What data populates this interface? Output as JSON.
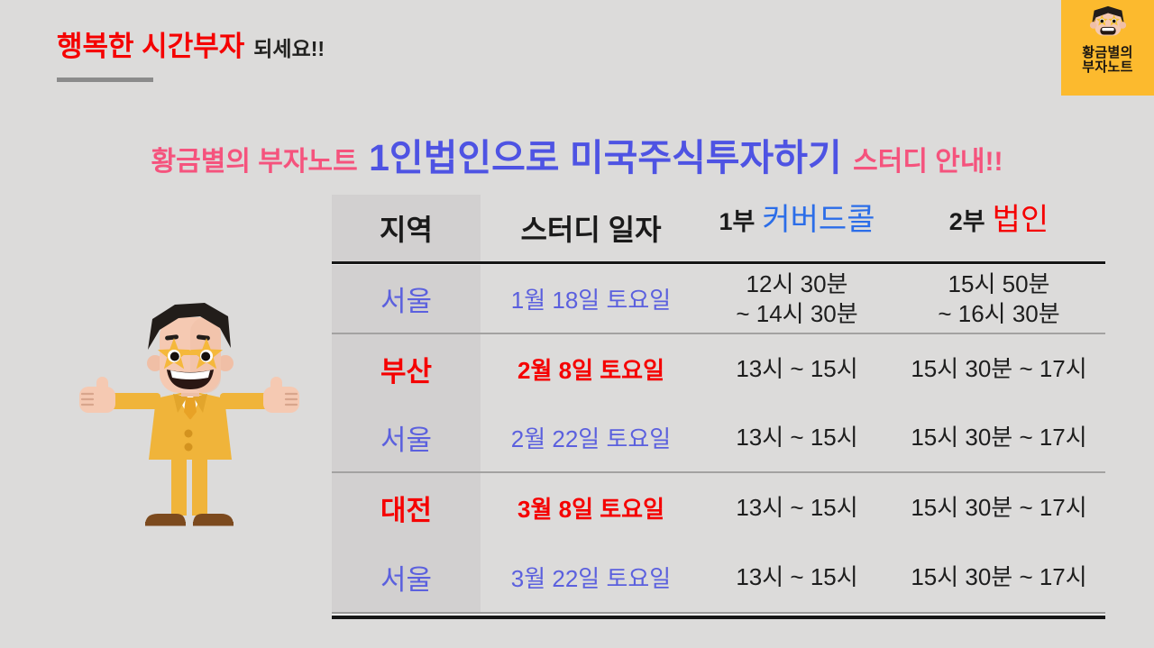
{
  "header": {
    "title_red": "행복한 시간부자",
    "title_suffix": "되세요!!"
  },
  "logo": {
    "line1": "황금별의",
    "line2": "부자노트"
  },
  "title": {
    "prefix": "황금별의 부자노트",
    "main": "1인법인으로 미국주식투자하기",
    "suffix": "스터디 안내!!"
  },
  "table": {
    "header": {
      "region": "지역",
      "date": "스터디 일자",
      "part1_no": "1부",
      "part1_name": "커버드콜",
      "part2_no": "2부",
      "part2_name": "법인"
    },
    "rows": [
      {
        "region": "서울",
        "date": "1월 18일 토요일",
        "part1": [
          "12시 30분",
          "~ 14시 30분"
        ],
        "part2": [
          "15시 50분",
          "~ 16시 30분"
        ],
        "accent": "blue",
        "divider_after": true
      },
      {
        "region": "부산",
        "date": "2월 8일 토요일",
        "part1": [
          "13시 ~ 15시"
        ],
        "part2": [
          "15시 30분 ~ 17시"
        ],
        "accent": "red",
        "divider_after": false
      },
      {
        "region": "서울",
        "date": "2월 22일 토요일",
        "part1": [
          "13시 ~ 15시"
        ],
        "part2": [
          "15시 30분 ~ 17시"
        ],
        "accent": "blue",
        "divider_after": true
      },
      {
        "region": "대전",
        "date": "3월 8일 토요일",
        "part1": [
          "13시 ~ 15시"
        ],
        "part2": [
          "15시 30분 ~ 17시"
        ],
        "accent": "red",
        "divider_after": false
      },
      {
        "region": "서울",
        "date": "3월 22일 토요일",
        "part1": [
          "13시 ~ 15시"
        ],
        "part2": [
          "15시 30분 ~ 17시"
        ],
        "accent": "blue",
        "divider_after": false
      }
    ]
  },
  "icons": {
    "logo_character": "star-glasses-character",
    "mascot": "thumbs-up-man-in-yellow-suit"
  },
  "colors": {
    "background": "#dcdbda",
    "region_column_bg": "#d2d0d0",
    "accent_red": "#f50000",
    "pink": "#f5537d",
    "title_blue": "#4e53e3",
    "table_blue": "#5b60de",
    "covered_call_blue": "#2b6de8",
    "logo_yellow": "#fcba2e",
    "underline_gray": "#8b8b8b"
  }
}
